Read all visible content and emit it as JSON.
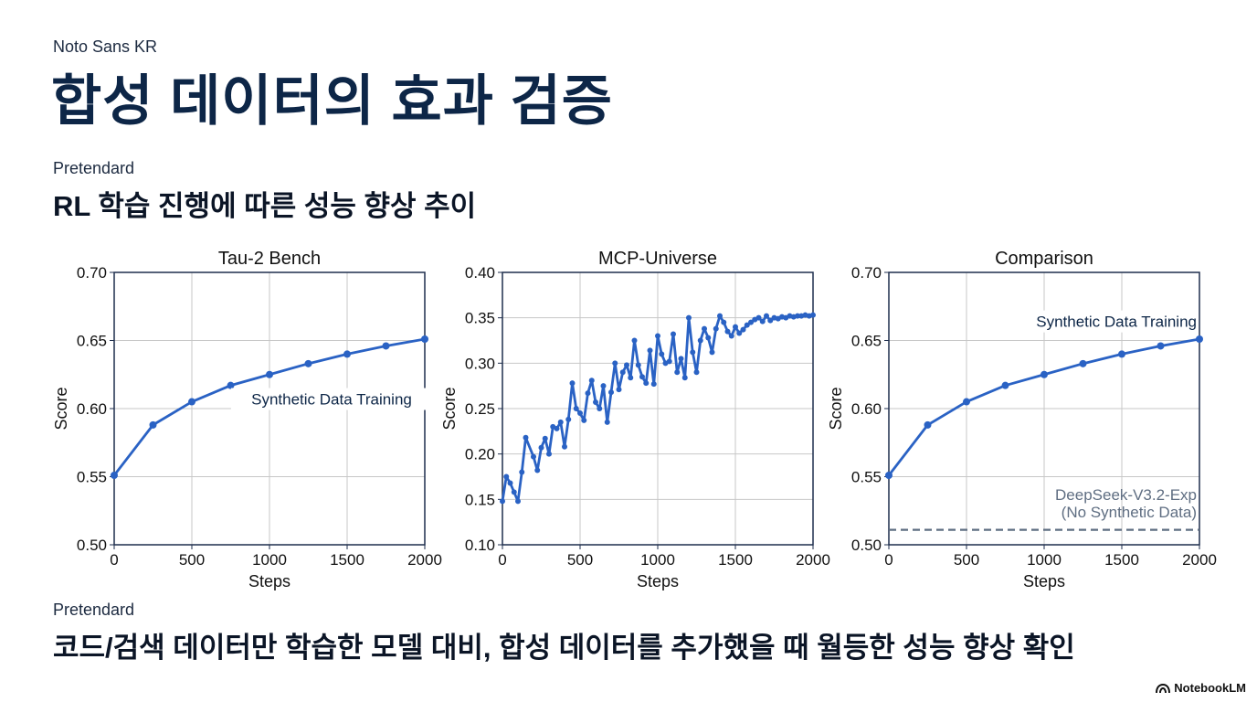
{
  "header": {
    "font_label_top": "Noto Sans KR",
    "title": "합성 데이터의 효과 검증",
    "font_label_mid": "Pretendard",
    "subtitle": "RL 학습 진행에 따른 성능 향상 추이",
    "font_label_bottom": "Pretendard",
    "conclusion": "코드/검색 데이터만 학습한 모델 대비, 합성 데이터를 추가했을 때 월등한 성능 향상 확인"
  },
  "brand": {
    "name": "NotebookLM",
    "icon": "notebooklm-logo-icon"
  },
  "colors": {
    "line": "#2a62c4",
    "baseline": "#5f6e82",
    "grid": "#c7c7c7",
    "frame": "#1e2e4d",
    "title": "#0d2647"
  },
  "chart_data": [
    {
      "type": "line",
      "title": "Tau-2 Bench",
      "xlabel": "Steps",
      "ylabel": "Score",
      "xlim": [
        0,
        2000
      ],
      "ylim": [
        0.5,
        0.7
      ],
      "xticks": [
        0,
        500,
        1000,
        1500,
        2000
      ],
      "yticks": [
        0.5,
        0.55,
        0.6,
        0.65,
        0.7
      ],
      "ytick_labels": [
        "0.50",
        "0.55",
        "0.60",
        "0.65",
        "0.70"
      ],
      "grid": true,
      "series": [
        {
          "name": "Synthetic Data Training",
          "x": [
            0,
            250,
            500,
            750,
            1000,
            1250,
            1500,
            1750,
            2000
          ],
          "y": [
            0.551,
            0.588,
            0.605,
            0.617,
            0.625,
            0.633,
            0.64,
            0.646,
            0.651
          ]
        }
      ],
      "annotations": [
        {
          "text": "Synthetic Data Training",
          "x": 1400,
          "y": 0.603
        }
      ]
    },
    {
      "type": "line",
      "title": "MCP-Universe",
      "xlabel": "Steps",
      "ylabel": "Score",
      "xlim": [
        0,
        2000
      ],
      "ylim": [
        0.1,
        0.4
      ],
      "xticks": [
        0,
        500,
        1000,
        1500,
        2000
      ],
      "yticks": [
        0.1,
        0.15,
        0.2,
        0.25,
        0.3,
        0.35,
        0.4
      ],
      "ytick_labels": [
        "0.10",
        "0.15",
        "0.20",
        "0.25",
        "0.30",
        "0.35",
        "0.40"
      ],
      "grid": true,
      "series": [
        {
          "name": "Synthetic Data Training",
          "x": [
            0,
            25,
            50,
            75,
            100,
            125,
            150,
            200,
            225,
            250,
            275,
            300,
            325,
            350,
            375,
            400,
            425,
            450,
            475,
            500,
            525,
            550,
            575,
            600,
            625,
            650,
            675,
            700,
            725,
            750,
            775,
            800,
            825,
            850,
            875,
            900,
            925,
            950,
            975,
            1000,
            1025,
            1050,
            1075,
            1100,
            1125,
            1150,
            1175,
            1200,
            1225,
            1250,
            1275,
            1300,
            1325,
            1350,
            1375,
            1400,
            1425,
            1450,
            1475,
            1500,
            1525,
            1550,
            1575,
            1600,
            1625,
            1650,
            1675,
            1700,
            1725,
            1750,
            1775,
            1800,
            1825,
            1850,
            1875,
            1900,
            1925,
            1950,
            1975,
            2000
          ],
          "y": [
            0.148,
            0.175,
            0.168,
            0.158,
            0.148,
            0.18,
            0.218,
            0.197,
            0.182,
            0.207,
            0.217,
            0.2,
            0.23,
            0.228,
            0.235,
            0.208,
            0.238,
            0.278,
            0.25,
            0.245,
            0.237,
            0.267,
            0.281,
            0.257,
            0.25,
            0.275,
            0.235,
            0.268,
            0.3,
            0.271,
            0.29,
            0.298,
            0.284,
            0.325,
            0.298,
            0.285,
            0.278,
            0.314,
            0.277,
            0.33,
            0.31,
            0.3,
            0.302,
            0.332,
            0.29,
            0.305,
            0.284,
            0.35,
            0.312,
            0.29,
            0.325,
            0.338,
            0.328,
            0.312,
            0.338,
            0.352,
            0.345,
            0.335,
            0.33,
            0.34,
            0.333,
            0.337,
            0.342,
            0.345,
            0.348,
            0.35,
            0.346,
            0.352,
            0.347,
            0.35,
            0.349,
            0.351,
            0.35,
            0.352,
            0.351,
            0.352,
            0.352,
            0.353,
            0.352,
            0.353
          ]
        }
      ]
    },
    {
      "type": "line",
      "title": "Comparison",
      "xlabel": "Steps",
      "ylabel": "Score",
      "xlim": [
        0,
        2000
      ],
      "ylim": [
        0.5,
        0.7
      ],
      "xticks": [
        0,
        500,
        1000,
        1500,
        2000
      ],
      "yticks": [
        0.5,
        0.55,
        0.6,
        0.65,
        0.7
      ],
      "ytick_labels": [
        "0.50",
        "0.55",
        "0.60",
        "0.65",
        "0.70"
      ],
      "grid": true,
      "series": [
        {
          "name": "Synthetic Data Training",
          "x": [
            0,
            250,
            500,
            750,
            1000,
            1250,
            1500,
            1750,
            2000
          ],
          "y": [
            0.551,
            0.588,
            0.605,
            0.617,
            0.625,
            0.633,
            0.64,
            0.646,
            0.651
          ]
        },
        {
          "name": "DeepSeek-V3.2-Exp (No Synthetic Data)",
          "style": "dashed",
          "x": [
            0,
            2000
          ],
          "y": [
            0.511,
            0.511
          ]
        }
      ],
      "annotations": [
        {
          "text": "Synthetic Data Training",
          "x": 2000,
          "y": 0.66
        },
        {
          "text": "DeepSeek-V3.2-Exp",
          "x": 2000,
          "y": 0.533
        },
        {
          "text": "(No Synthetic Data)",
          "x": 2000,
          "y": 0.52
        }
      ]
    }
  ]
}
